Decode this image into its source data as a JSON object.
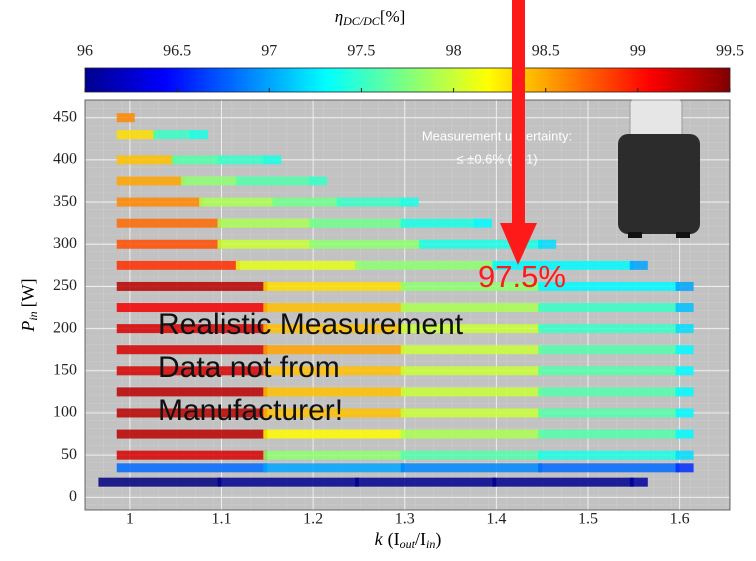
{
  "chart_data": {
    "type": "scatter",
    "colorbar_title": {
      "main": "η",
      "sub": "DC/DC",
      "unit": "[%]"
    },
    "x_label": {
      "main": "k",
      "unit": "(I",
      "sub1": "out",
      "mid": "/I",
      "sub2": "in",
      "end": ")"
    },
    "y_label": {
      "main": "P",
      "sub": "in",
      "unit": "[W]"
    },
    "colormap": "jet",
    "clim": [
      96,
      99.5
    ],
    "cticks": [
      96,
      96.5,
      97,
      97.5,
      98,
      98.5,
      99,
      99.5
    ],
    "xlim": [
      0.951,
      1.655
    ],
    "xticks": [
      {
        "value": 1,
        "label": "1"
      },
      1.1,
      1.2,
      1.3,
      1.4,
      1.5,
      1.6
    ],
    "ylim": [
      -15,
      471
    ],
    "yticks": [
      0,
      50,
      100,
      150,
      200,
      250,
      300,
      350,
      400,
      450
    ],
    "grid": true,
    "series": [
      {
        "y": 18,
        "x": [
          0.97,
          1.1,
          1.25,
          1.4,
          1.55
        ],
        "eta": [
          96.0,
          96.05,
          96.05,
          96.05,
          96.1
        ]
      },
      {
        "y": 35,
        "x": [
          0.99,
          1.15,
          1.3,
          1.45,
          1.6
        ],
        "eta": [
          96.8,
          97.0,
          96.9,
          96.8,
          96.6
        ]
      },
      {
        "y": 50,
        "x": [
          0.99,
          1.15,
          1.3,
          1.45,
          1.6
        ],
        "eta": [
          99.2,
          97.8,
          97.6,
          97.4,
          97.2
        ]
      },
      {
        "y": 75,
        "x": [
          0.99,
          1.15,
          1.3,
          1.45,
          1.6
        ],
        "eta": [
          99.3,
          98.2,
          97.9,
          97.6,
          97.3
        ]
      },
      {
        "y": 100,
        "x": [
          0.99,
          1.15,
          1.3,
          1.45,
          1.6
        ],
        "eta": [
          99.3,
          98.4,
          98.0,
          97.6,
          97.3
        ]
      },
      {
        "y": 125,
        "x": [
          0.99,
          1.15,
          1.3,
          1.45,
          1.6
        ],
        "eta": [
          99.3,
          98.4,
          98.0,
          97.6,
          97.3
        ]
      },
      {
        "y": 150,
        "x": [
          0.99,
          1.15,
          1.3,
          1.45,
          1.6
        ],
        "eta": [
          99.2,
          98.4,
          98.0,
          97.6,
          97.3
        ]
      },
      {
        "y": 175,
        "x": [
          0.99,
          1.15,
          1.3,
          1.45,
          1.6
        ],
        "eta": [
          99.2,
          98.5,
          98.0,
          97.6,
          97.3
        ]
      },
      {
        "y": 200,
        "x": [
          0.99,
          1.15,
          1.3,
          1.45,
          1.6
        ],
        "eta": [
          99.2,
          98.4,
          98.0,
          97.5,
          97.2
        ]
      },
      {
        "y": 225,
        "x": [
          0.99,
          1.15,
          1.3,
          1.45,
          1.6
        ],
        "eta": [
          99.1,
          98.4,
          97.9,
          97.5,
          97.1
        ]
      },
      {
        "y": 250,
        "x": [
          0.99,
          1.15,
          1.3,
          1.45,
          1.6
        ],
        "eta": [
          99.3,
          98.3,
          97.8,
          97.3,
          97.0
        ]
      },
      {
        "y": 275,
        "x": [
          0.99,
          1.12,
          1.25,
          1.4,
          1.55
        ],
        "eta": [
          98.9,
          98.1,
          97.8,
          97.3,
          97.0
        ]
      },
      {
        "y": 300,
        "x": [
          0.99,
          1.1,
          1.2,
          1.32,
          1.45
        ],
        "eta": [
          98.8,
          98.0,
          97.8,
          97.4,
          97.2
        ]
      },
      {
        "y": 325,
        "x": [
          0.99,
          1.1,
          1.2,
          1.3,
          1.38
        ],
        "eta": [
          98.7,
          97.9,
          97.7,
          97.4,
          97.3
        ]
      },
      {
        "y": 350,
        "x": [
          0.99,
          1.08,
          1.16,
          1.23,
          1.3
        ],
        "eta": [
          98.6,
          97.9,
          97.7,
          97.5,
          97.4
        ]
      },
      {
        "y": 375,
        "x": [
          0.99,
          1.06,
          1.12,
          1.2
        ],
        "eta": [
          98.5,
          97.8,
          97.6,
          97.5
        ]
      },
      {
        "y": 400,
        "x": [
          0.99,
          1.05,
          1.1,
          1.15
        ],
        "eta": [
          98.4,
          97.6,
          97.5,
          97.4
        ]
      },
      {
        "y": 430,
        "x": [
          0.99,
          1.03,
          1.07
        ],
        "eta": [
          98.3,
          97.5,
          97.4
        ]
      },
      {
        "y": 450,
        "x": [
          0.99
        ],
        "eta": [
          98.6
        ]
      }
    ],
    "annotations": {
      "uncertainty_line1": "Measurement uncertainty:",
      "uncertainty_line2": "≤ ±0.6% (k=1)",
      "arrow_label": "97.5%",
      "note_line1": "Realistic Measurement",
      "note_line2": "Data not from",
      "note_line3": "Manufacturer!"
    }
  }
}
